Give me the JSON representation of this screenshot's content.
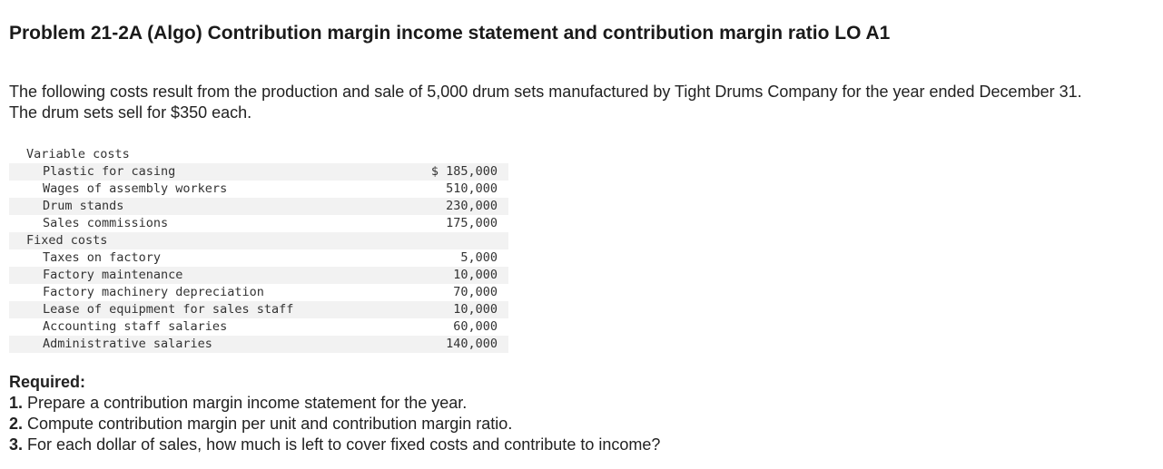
{
  "header": {
    "title": "Problem 21-2A (Algo) Contribution margin income statement and contribution margin ratio LO A1"
  },
  "intro": "The following costs result from the production and sale of 5,000 drum sets manufactured by Tight Drums Company for the year ended December 31. The drum sets sell for $350 each.",
  "table": {
    "rows": [
      {
        "label": "Variable costs",
        "section": true
      },
      {
        "label": "Plastic for casing",
        "amount": "$ 185,000"
      },
      {
        "label": "Wages of assembly workers",
        "amount": "510,000"
      },
      {
        "label": "Drum stands",
        "amount": "230,000"
      },
      {
        "label": "Sales commissions",
        "amount": "175,000"
      },
      {
        "label": "Fixed costs",
        "section": true
      },
      {
        "label": "Taxes on factory",
        "amount": "5,000"
      },
      {
        "label": "Factory maintenance",
        "amount": "10,000"
      },
      {
        "label": "Factory machinery depreciation",
        "amount": "70,000"
      },
      {
        "label": "Lease of equipment for sales staff",
        "amount": "10,000"
      },
      {
        "label": "Accounting staff salaries",
        "amount": "60,000"
      },
      {
        "label": "Administrative salaries",
        "amount": "140,000"
      }
    ]
  },
  "required": {
    "heading": "Required:",
    "items": [
      {
        "number": "1.",
        "text": "Prepare a contribution margin income statement for the year."
      },
      {
        "number": "2.",
        "text": "Compute contribution margin per unit and contribution margin ratio."
      },
      {
        "number": "3.",
        "text": "For each dollar of sales, how much is left to cover fixed costs and contribute to income?"
      }
    ]
  }
}
